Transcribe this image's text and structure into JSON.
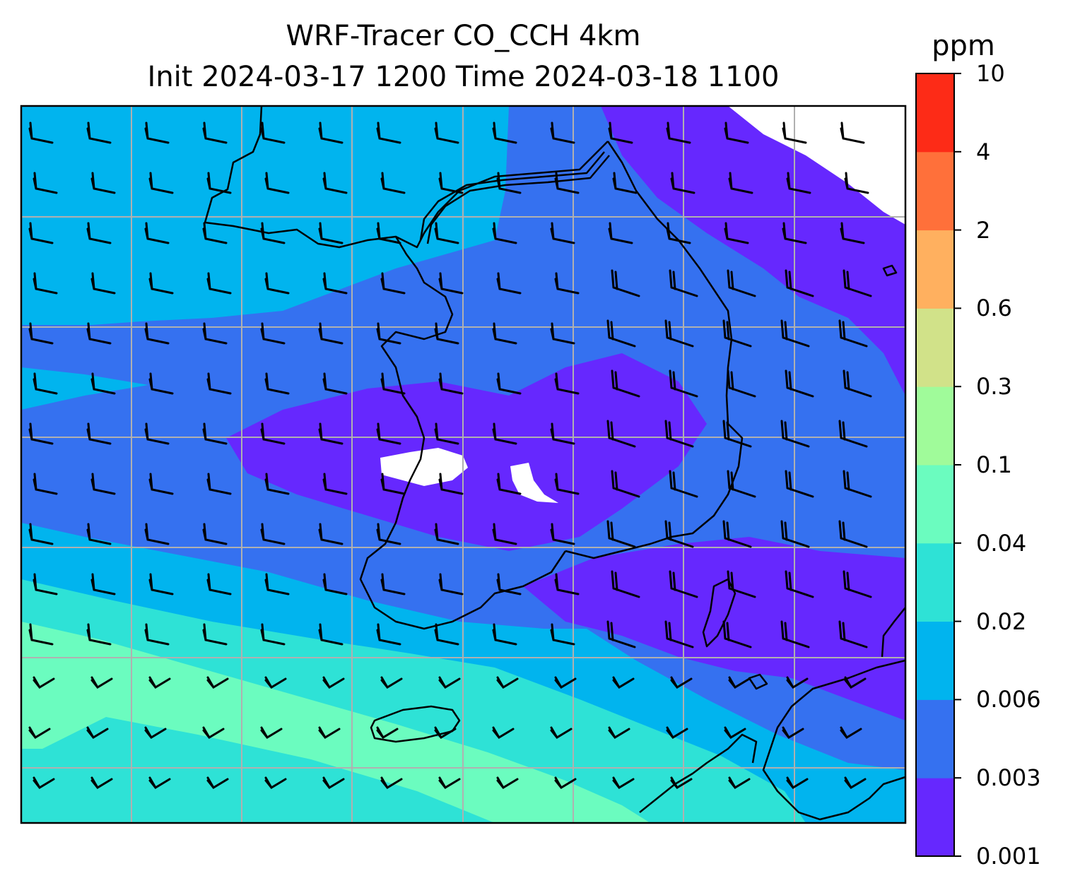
{
  "title_line1": "WRF-Tracer CO_CCH 4km",
  "title_line2": "Init 2024-03-17 1200 Time 2024-03-18 1100",
  "colorbar": {
    "unit": "ppm",
    "levels": [
      "0.001",
      "0.003",
      "0.006",
      "0.02",
      "0.04",
      "0.1",
      "0.3",
      "0.6",
      "2",
      "4",
      "10"
    ],
    "colors": [
      "#6628fe",
      "#3571f0",
      "#01b4ee",
      "#2ee2d6",
      "#6bfcbf",
      "#a0fb9a",
      "#d1e289",
      "#ffb05f",
      "#ff703a",
      "#fd2b17"
    ]
  },
  "map": {
    "field": "CO_CCH tracer",
    "wind_barbs": "yes",
    "gridlines": "on",
    "colors": {
      "coastline": "#000000",
      "gridline": "#b0b0b0",
      "missing": "#ffffff"
    }
  }
}
